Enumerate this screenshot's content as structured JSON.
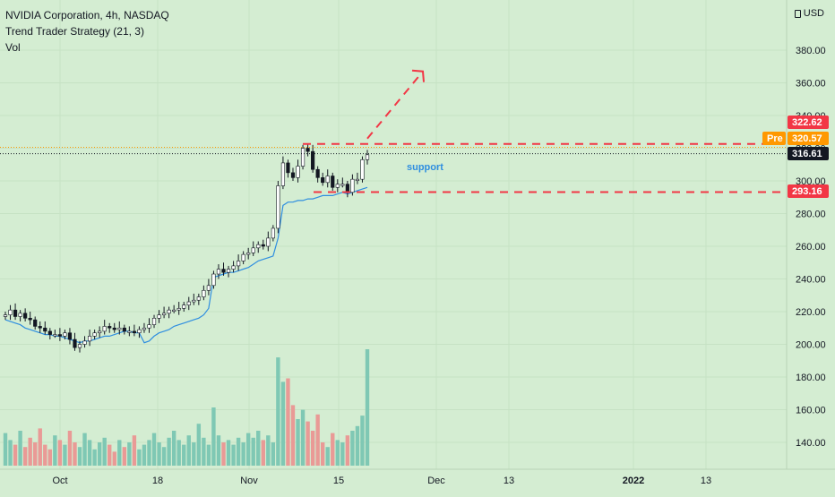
{
  "legend": {
    "symbol_line": "NVIDIA Corporation, 4h, NASDAQ",
    "indicator_line": "Trend Trader Strategy (21, 3)",
    "volume_line": "Vol"
  },
  "axis": {
    "currency": "USD",
    "y_ticks": [
      "380.00",
      "360.00",
      "340.00",
      "320.00",
      "300.00",
      "280.00",
      "260.00",
      "240.00",
      "220.00",
      "200.00",
      "180.00",
      "160.00",
      "140.00"
    ],
    "x_ticks": [
      "Oct",
      "18",
      "Nov",
      "15",
      "Dec",
      "13",
      "2022",
      "13"
    ]
  },
  "price_tags": {
    "high_level": "322.62",
    "pre_label": "Pre",
    "pre_value": "320.57",
    "last_price": "316.61",
    "support_level": "293.16"
  },
  "annotation": {
    "support_label": "support"
  },
  "colors": {
    "background": "#d4edd2",
    "up": "#26a69a",
    "down": "#ef5350",
    "trend_line": "#2f8ee0",
    "tag_red": "#f23645",
    "pre_orange": "#ff9800",
    "last_black": "#131722",
    "dashed_red": "#f23645"
  },
  "chart_data": {
    "type": "candlestick",
    "title": "NVIDIA Corporation, 4h, NASDAQ",
    "ylim": [
      130,
      390
    ],
    "y_axis": "price (USD)",
    "x_range": [
      "2021-09-24",
      "2022-01-24"
    ],
    "candles_close": [
      218,
      221,
      217,
      219,
      216,
      215,
      211,
      210,
      208,
      206,
      206,
      205,
      207,
      203,
      198,
      200,
      202,
      205,
      207,
      208,
      211,
      210,
      209,
      210,
      208,
      208,
      207,
      209,
      210,
      212,
      216,
      218,
      219,
      221,
      221,
      222,
      224,
      226,
      227,
      229,
      233,
      236,
      243,
      246,
      244,
      246,
      248,
      251,
      255,
      256,
      259,
      261,
      260,
      265,
      271,
      297,
      311,
      305,
      302,
      309,
      320,
      318,
      307,
      302,
      299,
      303,
      296,
      298,
      298,
      293,
      301,
      301,
      313,
      316
    ],
    "trend_line_values": [
      215,
      214,
      213,
      212,
      210,
      209,
      208,
      207,
      206,
      206,
      205,
      205,
      204,
      203,
      202,
      201,
      202,
      202,
      203,
      204,
      205,
      205,
      206,
      207,
      208,
      208,
      207,
      207,
      201,
      202,
      205,
      207,
      208,
      209,
      211,
      212,
      213,
      214,
      215,
      216,
      218,
      222,
      241,
      242,
      243,
      244,
      244,
      245,
      246,
      247,
      249,
      251,
      252,
      253,
      254,
      265,
      285,
      287,
      287,
      288,
      288,
      289,
      289,
      290,
      291,
      291,
      291,
      292,
      293,
      292,
      293,
      294,
      295,
      296
    ],
    "volume": {
      "max_visible": 197,
      "last_bar": 197,
      "spike_bar": 187
    },
    "levels": [
      {
        "label": "322.62",
        "value": 322.62,
        "style": "dashed"
      },
      {
        "label": "293.16",
        "value": 293.16,
        "style": "dashed"
      }
    ],
    "projection": {
      "from_price": 322.62,
      "to_price": 367
    },
    "last_price": 316.61,
    "pre_price": 320.57
  }
}
